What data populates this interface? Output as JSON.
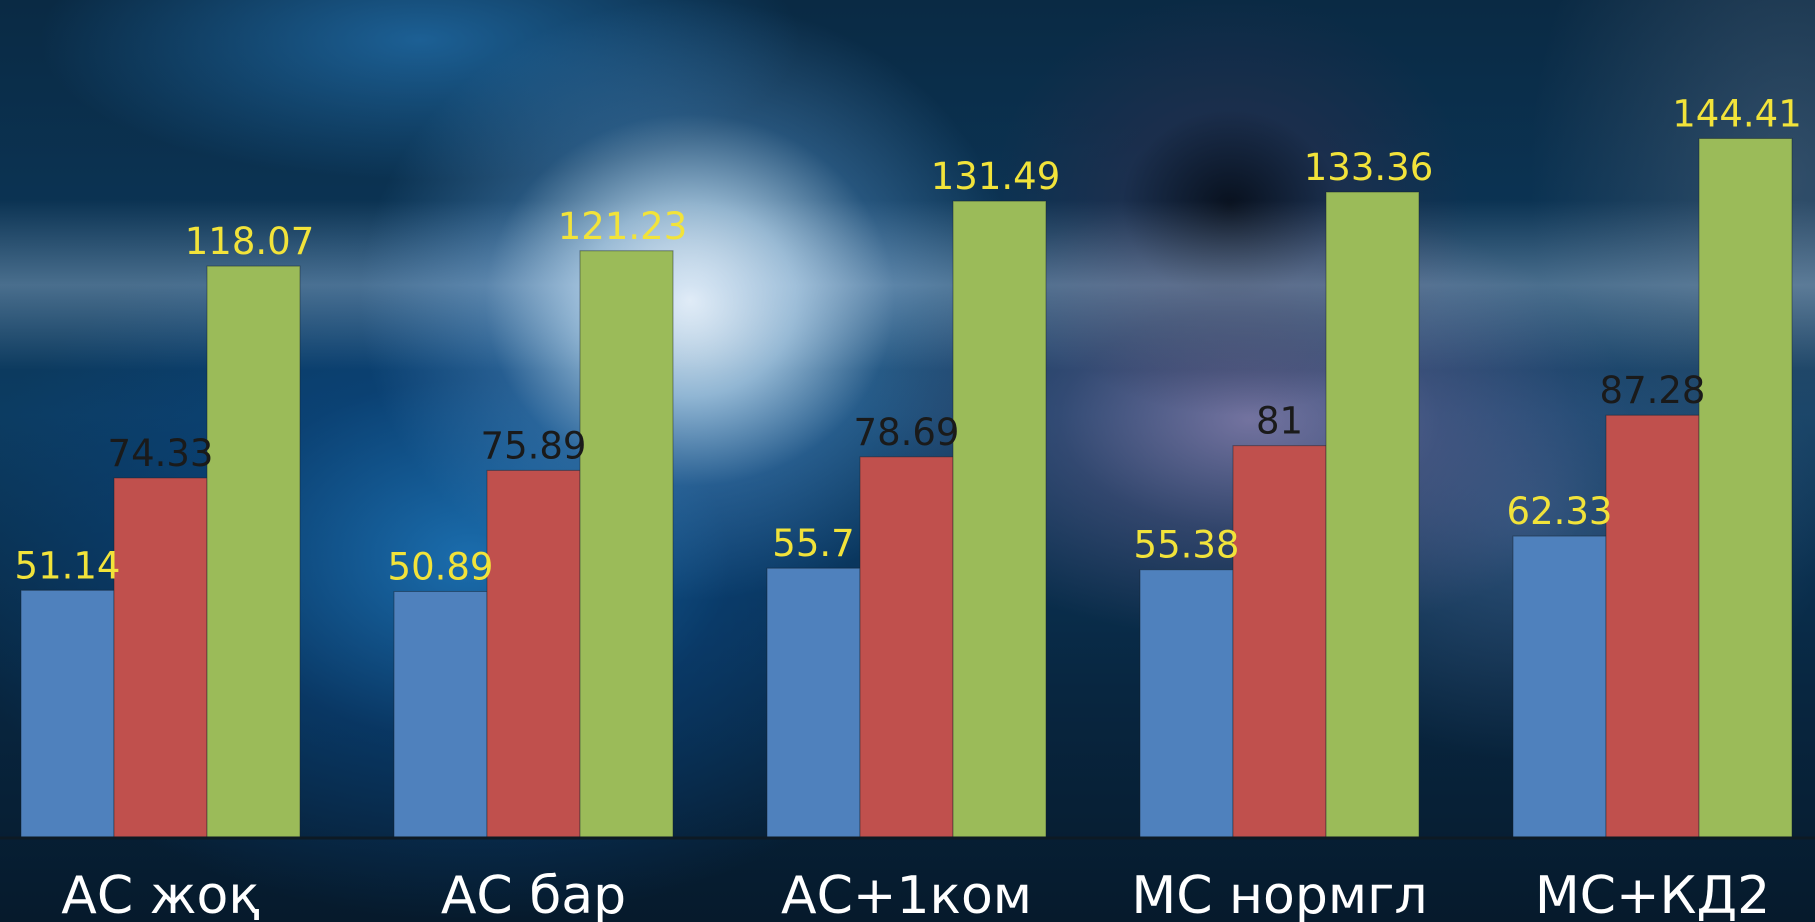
{
  "chart_data": {
    "type": "bar",
    "categories": [
      "АС жоқ",
      "АС бар",
      "АС+1ком",
      "МС нормгл",
      "МС+КД2"
    ],
    "series": [
      {
        "values": [
          51.14,
          50.89,
          55.7,
          55.38,
          62.33
        ],
        "color": "#4F81BD",
        "label_color": "#F2E33A"
      },
      {
        "values": [
          74.33,
          75.89,
          78.69,
          81,
          87.28
        ],
        "color": "#C0504D",
        "label_color": "#1A1A1A"
      },
      {
        "values": [
          118.07,
          121.23,
          131.49,
          133.36,
          144.41
        ],
        "color": "#9BBB59",
        "label_color": "#F2E33A"
      }
    ],
    "ylim": [
      0,
      155
    ],
    "grid": false,
    "legend": "none",
    "category_label_color": "#FFFFFF",
    "axis_line_color": "#0D1A24"
  }
}
